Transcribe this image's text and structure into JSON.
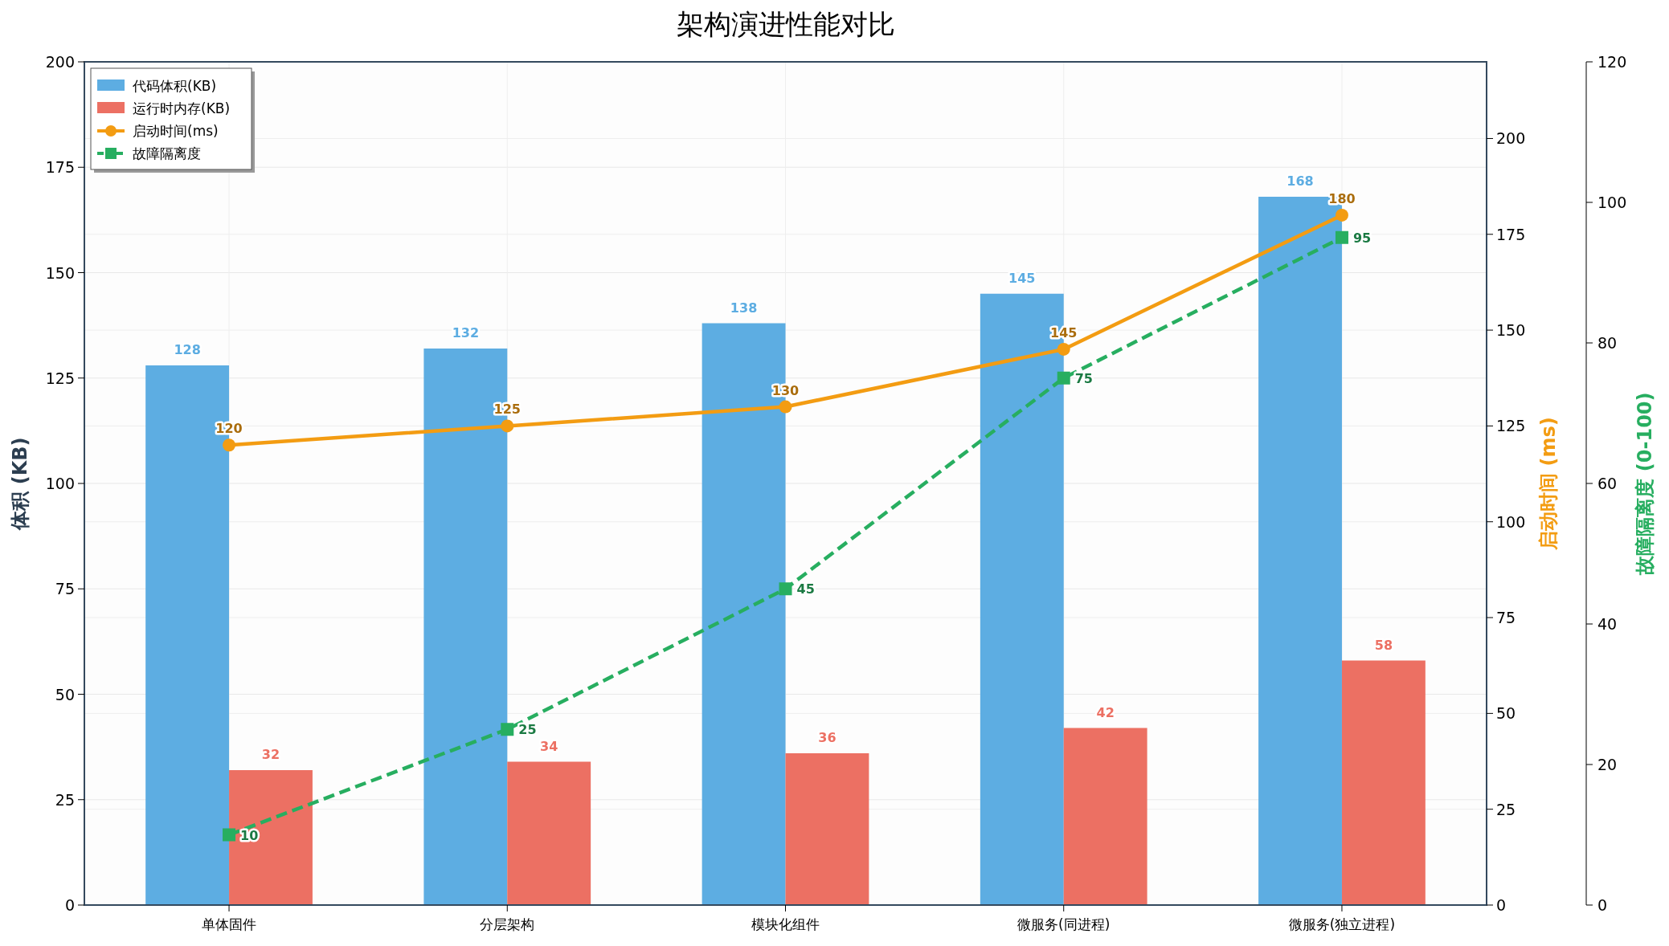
{
  "chart_data": {
    "type": "bar",
    "title": "架构演进性能对比",
    "categories": [
      "单体固件",
      "分层架构",
      "模块化组件",
      "微服务(同进程)",
      "微服务(独立进程)"
    ],
    "series": [
      {
        "name": "代码体积(KB)",
        "color": "#5dade2",
        "values": [
          128,
          132,
          138,
          145,
          168
        ]
      },
      {
        "name": "运行时内存(KB)",
        "color": "#ec7063",
        "values": [
          32,
          34,
          36,
          42,
          58
        ]
      },
      {
        "name": "启动时间(ms)",
        "type": "line",
        "axis": "y2",
        "color": "#f39c12",
        "marker": "circle",
        "line_style": "solid",
        "values": [
          120,
          125,
          130,
          145,
          180
        ]
      },
      {
        "name": "故障隔离度",
        "type": "line",
        "axis": "y3",
        "color": "#27ae60",
        "marker": "square",
        "line_style": "dashed",
        "values": [
          10,
          25,
          45,
          75,
          95
        ]
      }
    ],
    "ylabel": "体积 (KB)",
    "y2label": "启动时间 (ms)",
    "y3label": "故障隔离度 (0-100)",
    "ylim": [
      0,
      200
    ],
    "yticks": [
      0,
      25,
      50,
      75,
      100,
      125,
      150,
      175,
      200
    ],
    "y2lim": [
      0,
      220
    ],
    "y2ticks": [
      0,
      25,
      50,
      75,
      100,
      125,
      150,
      175,
      200
    ],
    "y3lim": [
      0,
      120
    ],
    "y3ticks": [
      0,
      20,
      40,
      60,
      80,
      100,
      120
    ],
    "grid": true,
    "legend": "top left",
    "data_labels": true
  }
}
